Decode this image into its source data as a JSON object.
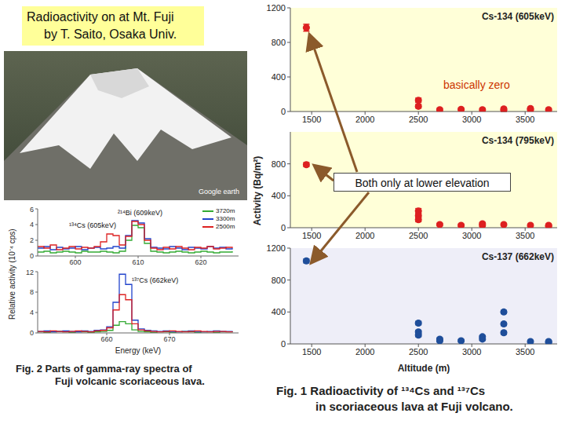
{
  "title_box": [
    "Radioactivity on at Mt. Fuji",
    "by T. Saito, Osaka Univ."
  ],
  "photo": {
    "watermark": "Google earth"
  },
  "fig2": {
    "caption": [
      "Fig. 2 Parts of gamma-ray spectra of",
      "Fuji volcanic scoriaceous lava."
    ],
    "ylabel": "Relative activity (10⁻⁴ cps)",
    "xlabel": "Energy (keV)"
  },
  "fig1": {
    "caption": [
      "Fig. 1 Radioactivity of ¹³⁴Cs and ¹³⁷Cs",
      "in scoriaceous lava at Fuji volcano."
    ],
    "ylabel": "Activity (Bq/m²)",
    "xlabel": "Altitude (m)",
    "annotations": [
      "basically zero",
      "Both only at lower elevation"
    ]
  },
  "chart_data": [
    {
      "type": "line",
      "line_style": "step",
      "legend": "top-right",
      "annotations": [
        "¹³⁴Cs (605keV)",
        "²¹⁴Bi (609keV)"
      ],
      "x": [
        594,
        595,
        596,
        597,
        598,
        599,
        600,
        601,
        602,
        603,
        604,
        605,
        606,
        607,
        608,
        609,
        610,
        611,
        612,
        613,
        614,
        615,
        616,
        617,
        618,
        619,
        620,
        621,
        622,
        623,
        624,
        625
      ],
      "series": [
        {
          "name": "3720m",
          "color": "#33aa33",
          "values": [
            0.5,
            0.6,
            0.4,
            0.5,
            0.6,
            0.5,
            0.4,
            0.6,
            0.5,
            0.5,
            0.6,
            0.5,
            0.4,
            0.6,
            2.0,
            3.9,
            3.6,
            1.6,
            0.6,
            0.5,
            0.4,
            0.5,
            0.6,
            0.5,
            0.4,
            0.5,
            0.6,
            0.5,
            0.4,
            0.5,
            0.5,
            0.6
          ]
        },
        {
          "name": "3300m",
          "color": "#2244cc",
          "values": [
            1.0,
            1.2,
            0.8,
            1.1,
            0.9,
            1.0,
            1.2,
            0.8,
            1.0,
            1.1,
            0.9,
            1.0,
            1.2,
            1.0,
            2.6,
            4.5,
            4.2,
            2.2,
            1.1,
            1.0,
            0.9,
            1.2,
            1.0,
            0.8,
            1.1,
            1.0,
            0.9,
            1.2,
            1.0,
            1.1,
            0.9,
            1.0
          ]
        },
        {
          "name": "2500m",
          "color": "#dd2222",
          "values": [
            1.2,
            1.0,
            1.4,
            0.8,
            1.0,
            1.2,
            0.9,
            1.1,
            1.0,
            1.2,
            1.8,
            2.8,
            2.6,
            1.4,
            2.5,
            4.4,
            4.0,
            2.0,
            1.0,
            0.8,
            1.1,
            0.9,
            1.2,
            1.0,
            0.8,
            1.1,
            1.0,
            1.2,
            0.9,
            1.0,
            1.1,
            1.0
          ]
        }
      ],
      "xlim": [
        594,
        626
      ],
      "xticks": [
        600,
        610,
        620
      ],
      "ylim": [
        0,
        6
      ],
      "yticks": [
        0,
        2,
        4,
        6
      ]
    },
    {
      "type": "line",
      "line_style": "step",
      "annotations": [
        "¹³⁷Cs (662keV)"
      ],
      "x": [
        649,
        650,
        651,
        652,
        653,
        654,
        655,
        656,
        657,
        658,
        659,
        660,
        661,
        662,
        663,
        664,
        665,
        666,
        667,
        668,
        669,
        670,
        671,
        672,
        673,
        674,
        675,
        676,
        677,
        678,
        679,
        680
      ],
      "series": [
        {
          "name": "3720m",
          "color": "#33aa33",
          "values": [
            0.2,
            0.1,
            0.2,
            0.3,
            0.2,
            0.1,
            0.2,
            0.2,
            0.1,
            0.2,
            0.3,
            0.5,
            1.5,
            2.2,
            1.8,
            0.6,
            0.3,
            0.2,
            0.1,
            0.2,
            0.2,
            0.1,
            0.2,
            0.3,
            0.2,
            0.1,
            0.2,
            0.2,
            0.1,
            0.2,
            0.2,
            0.1
          ]
        },
        {
          "name": "3300m",
          "color": "#2244cc",
          "values": [
            0.3,
            0.4,
            0.2,
            0.3,
            0.4,
            0.3,
            0.2,
            0.4,
            0.3,
            0.5,
            0.6,
            1.2,
            6.0,
            11.5,
            9.5,
            2.5,
            0.8,
            0.5,
            0.4,
            0.3,
            0.4,
            0.3,
            0.2,
            0.3,
            0.4,
            0.3,
            0.2,
            0.3,
            0.4,
            0.3,
            0.3,
            0.2
          ]
        },
        {
          "name": "2500m",
          "color": "#dd2222",
          "values": [
            0.3,
            0.2,
            0.4,
            0.3,
            0.2,
            0.3,
            0.4,
            0.3,
            0.2,
            0.4,
            0.5,
            1.0,
            4.5,
            7.5,
            6.5,
            1.8,
            0.6,
            0.4,
            0.3,
            0.2,
            0.3,
            0.4,
            0.3,
            0.2,
            0.3,
            0.4,
            0.3,
            0.2,
            0.3,
            0.3,
            0.2,
            0.3
          ]
        }
      ],
      "xlim": [
        649,
        681
      ],
      "xticks": [
        660,
        670
      ],
      "ylim": [
        0,
        12
      ],
      "yticks": [
        0,
        4,
        8,
        12
      ]
    },
    {
      "type": "scatter",
      "title": "Cs-134 (605keV)",
      "color": "#dd2020",
      "x": [
        1450,
        2500,
        2500,
        2700,
        2900,
        3100,
        3300,
        3300,
        3550,
        3550,
        3720
      ],
      "values": [
        970,
        130,
        60,
        20,
        25,
        20,
        30,
        15,
        35,
        20,
        20
      ],
      "errors": [
        40,
        25,
        20,
        15,
        15,
        15,
        15,
        15,
        15,
        15,
        15
      ],
      "xlim": [
        1300,
        3800
      ],
      "xticks": [
        1500,
        2000,
        2500,
        3000,
        3500
      ],
      "ylim": [
        0,
        1200
      ],
      "yticks": [
        0,
        400,
        800,
        1200
      ]
    },
    {
      "type": "scatter",
      "title": "Cs-134 (795keV)",
      "color": "#dd2020",
      "x": [
        1450,
        2500,
        2500,
        2500,
        2700,
        2900,
        3100,
        3100,
        3300,
        3550,
        3720,
        3720
      ],
      "values": [
        790,
        210,
        150,
        100,
        40,
        30,
        50,
        30,
        40,
        30,
        20,
        30
      ],
      "errors": [
        25,
        30,
        25,
        25,
        15,
        15,
        15,
        15,
        15,
        15,
        15,
        15
      ],
      "xlim": [
        1300,
        3800
      ],
      "xticks": [
        1500,
        2000,
        2500,
        3000,
        3500
      ],
      "ylim": [
        0,
        1200
      ],
      "yticks": [
        0,
        400,
        800
      ]
    },
    {
      "type": "scatter",
      "title": "Cs-137 (662keV)",
      "color": "#1f4e9a",
      "x": [
        1450,
        2500,
        2500,
        2500,
        2700,
        2700,
        2900,
        3100,
        3100,
        3300,
        3300,
        3300,
        3550,
        3720,
        3720
      ],
      "values": [
        1040,
        260,
        150,
        110,
        60,
        40,
        40,
        90,
        60,
        400,
        250,
        140,
        30,
        20,
        30
      ],
      "errors": [
        25,
        20,
        20,
        20,
        15,
        15,
        15,
        15,
        15,
        20,
        20,
        20,
        15,
        15,
        15
      ],
      "xlim": [
        1300,
        3800
      ],
      "xticks": [
        1500,
        2000,
        2500,
        3000,
        3500
      ],
      "ylim": [
        0,
        1200
      ],
      "yticks": [
        0,
        400,
        800,
        1200
      ]
    }
  ]
}
